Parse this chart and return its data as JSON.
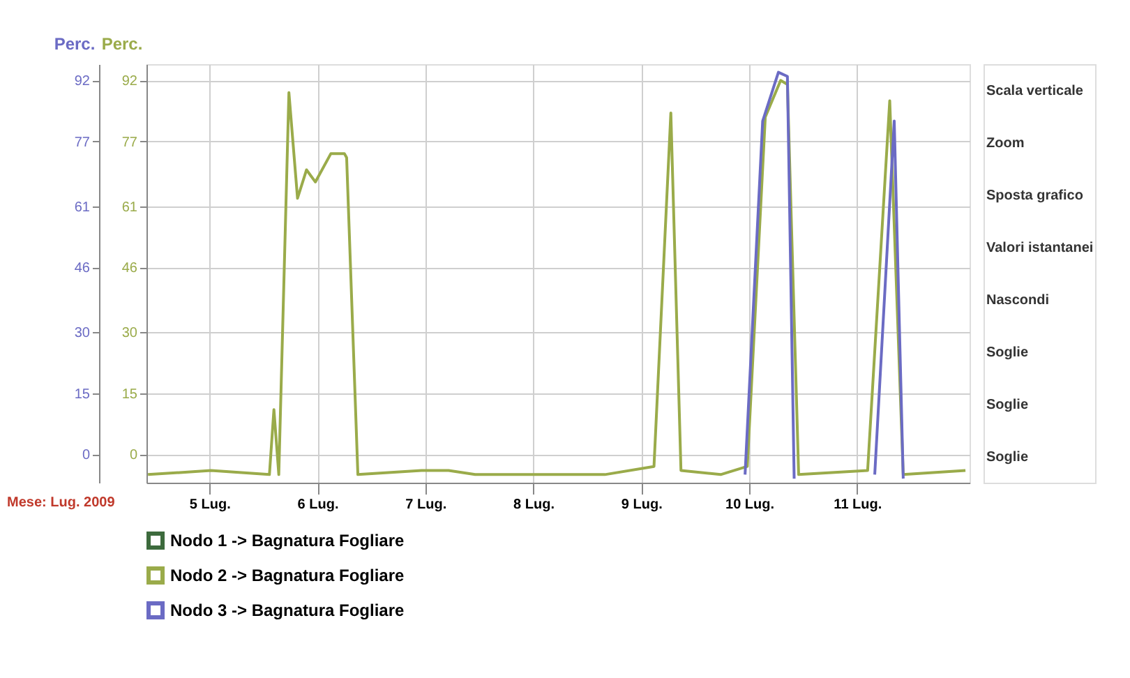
{
  "chart_data": {
    "type": "line",
    "ylabel": "Perc.",
    "y2label": "Perc.",
    "annotations": [
      "Mese: Lug. 2009",
      "Scala verticale",
      "Zoom",
      "Sposta grafico",
      "Valori istantanei",
      "Nascondi",
      "Soglie",
      "Soglie",
      "Soglie"
    ],
    "series": [
      {
        "name": "Nodo 1 -> Bagnatura Fogliare",
        "color": "#3d6b3d"
      },
      {
        "name": "Nodo 2 -> Bagnatura Fogliare",
        "color": "#9aab4a",
        "axis": "y2",
        "x": [
          "2009-07-04T10:20",
          "2009-07-05T00:20",
          "2009-07-05T13:20",
          "2009-07-05T14:20",
          "2009-07-05T15:25",
          "2009-07-05T17:40",
          "2009-07-05T19:35",
          "2009-07-05T21:35",
          "2009-07-05T23:33",
          "2009-07-06T03:00",
          "2009-07-06T06:00",
          "2009-07-06T06:30",
          "2009-07-06T09:00",
          "2009-07-06T23:10",
          "2009-07-07T05:10",
          "2009-07-07T11:05",
          "2009-07-08T03:10",
          "2009-07-08T15:55",
          "2009-07-09T02:50",
          "2009-07-09T06:35",
          "2009-07-09T08:50",
          "2009-07-09T17:40",
          "2009-07-09T23:35",
          "2009-07-10T03:35",
          "2009-07-10T07:00",
          "2009-07-10T08:30",
          "2009-07-10T11:00",
          "2009-07-11T02:20",
          "2009-07-11T07:15",
          "2009-07-11T10:15",
          "2009-07-12T00:05"
        ],
        "values": [
          -5,
          -4,
          -5,
          11,
          -5,
          89,
          63,
          70,
          67,
          74,
          74,
          73,
          -5,
          -4,
          -4,
          -5,
          -5,
          -5,
          -3,
          84,
          -4,
          -5,
          -3,
          83,
          92,
          91,
          -5,
          -4,
          87,
          -5,
          -4
        ]
      },
      {
        "name": "Nodo 3 -> Bagnatura Fogliare",
        "color": "#6b6bc4",
        "x": [
          "2009-07-09T23:05",
          "2009-07-10T03:00",
          "2009-07-10T06:30",
          "2009-07-10T08:30",
          "2009-07-10T10:00",
          "2009-07-10T18:00",
          "2009-07-11T03:55",
          "2009-07-11T08:15",
          "2009-07-11T10:15"
        ],
        "values": [
          -5,
          82,
          94,
          93,
          -6,
          null,
          -5,
          82,
          -6
        ]
      }
    ],
    "xlim": [
      "2009-07-04T10:00",
      "2009-07-12T01:00"
    ],
    "xticks": [
      {
        "value": "2009-07-05",
        "label": "5 Lug."
      },
      {
        "value": "2009-07-06",
        "label": "6 Lug."
      },
      {
        "value": "2009-07-07",
        "label": "7 Lug."
      },
      {
        "value": "2009-07-08",
        "label": "8 Lug."
      },
      {
        "value": "2009-07-09",
        "label": "9 Lug."
      },
      {
        "value": "2009-07-10",
        "label": "10 Lug."
      },
      {
        "value": "2009-07-11",
        "label": "11 Lug."
      }
    ],
    "ylim": [
      -7,
      96
    ],
    "yticks": [
      0,
      15,
      30,
      46,
      61,
      77,
      92
    ],
    "y2lim": [
      -7,
      96
    ],
    "y2ticks": [
      0,
      15,
      30,
      46,
      61,
      77,
      92
    ],
    "grid": true,
    "legend": "bottom",
    "marker": "none",
    "line_style": "solid"
  }
}
